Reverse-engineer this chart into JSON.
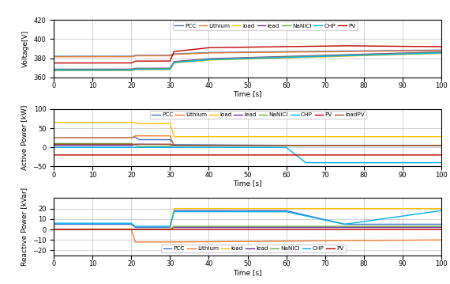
{
  "t_max": 100,
  "voltage_ylim": [
    360,
    420
  ],
  "voltage_yticks": [
    360,
    380,
    400,
    420
  ],
  "active_ylim": [
    -50,
    100
  ],
  "active_yticks": [
    -50,
    0,
    50,
    100
  ],
  "reactive_ylim": [
    -25,
    30
  ],
  "reactive_yticks": [
    -20,
    -10,
    0,
    10,
    20
  ],
  "xticks": [
    0,
    10,
    20,
    30,
    40,
    50,
    60,
    70,
    80,
    90,
    100
  ],
  "colors": {
    "PCC": "#4472C4",
    "Lithium": "#ED7D31",
    "load": "#FFC000",
    "lead": "#7030A0",
    "NaNiCl": "#70AD47",
    "CHP": "#00B0F0",
    "PV": "#C00000",
    "loadPV": "#A0522D"
  },
  "voltage_legend": [
    "PCC",
    "Lithium",
    "load",
    "lead",
    "NaNiCl",
    "CHP",
    "PV"
  ],
  "active_legend": [
    "PCC",
    "Lithium",
    "load",
    "lead",
    "NaNiCl",
    "CHP",
    "PV",
    "loadPV"
  ],
  "reactive_legend": [
    "PCC",
    "Lithium",
    "load",
    "lead",
    "NaNiCl",
    "CHP",
    "PV"
  ]
}
